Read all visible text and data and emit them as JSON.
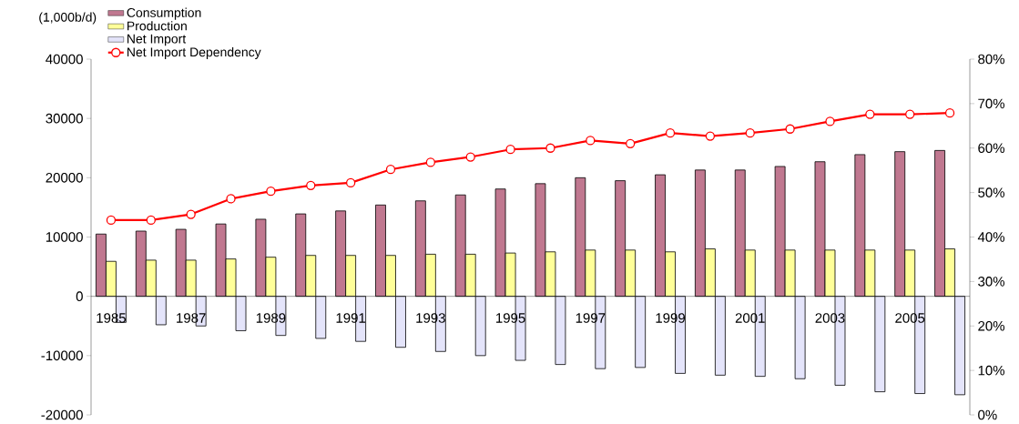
{
  "chart_data": {
    "type": "bar",
    "ylabel": "(1,000b/d)",
    "categories": [
      "1985",
      null,
      "1987",
      null,
      "1989",
      null,
      "1991",
      null,
      "1993",
      null,
      "1995",
      null,
      "1997",
      null,
      "1999",
      null,
      "2001",
      null,
      "2003",
      null,
      "2005",
      null
    ],
    "series": [
      {
        "name": "Consumption",
        "color": "#c07890",
        "values": [
          10500,
          11000,
          11300,
          12200,
          13000,
          13900,
          14400,
          15400,
          16100,
          17100,
          18100,
          19000,
          20000,
          19500,
          20500,
          21300,
          21300,
          21900,
          22700,
          23900,
          24400,
          24600
        ]
      },
      {
        "name": "Production",
        "color": "#ffff99",
        "values": [
          5900,
          6100,
          6100,
          6300,
          6600,
          6900,
          6900,
          6900,
          7100,
          7100,
          7300,
          7500,
          7800,
          7800,
          7500,
          8000,
          7800,
          7800,
          7800,
          7800,
          7800,
          8000
        ]
      },
      {
        "name": "Net Import",
        "color": "#e4e4fa",
        "values": [
          -4400,
          -4800,
          -5000,
          -5800,
          -6600,
          -7100,
          -7600,
          -8600,
          -9300,
          -10000,
          -10800,
          -11500,
          -12200,
          -12000,
          -13000,
          -13300,
          -13500,
          -13900,
          -15000,
          -16100,
          -16400,
          -16600
        ]
      },
      {
        "name": "Net Import Dependency",
        "color": "#ff0000",
        "type": "line",
        "axis": "y2",
        "marker": "circle",
        "line_style": "solid",
        "values": [
          43.8,
          43.8,
          45.1,
          48.6,
          50.3,
          51.6,
          52.2,
          55.2,
          56.8,
          58.0,
          59.7,
          60.0,
          61.7,
          61.0,
          63.4,
          62.7,
          63.4,
          64.3,
          66.0,
          67.6,
          67.6,
          67.9
        ]
      }
    ],
    "ylim": [
      -20000,
      40000
    ],
    "yticks": [
      -20000,
      -10000,
      0,
      10000,
      20000,
      30000,
      40000
    ],
    "y2lim": [
      0,
      80
    ],
    "y2ticks": [
      {
        "value": 0,
        "label": "0%"
      },
      {
        "value": 10,
        "label": "10%"
      },
      {
        "value": 20,
        "label": "20%"
      },
      {
        "value": 30,
        "label": "30%"
      },
      {
        "value": 40,
        "label": "40%"
      },
      {
        "value": 50,
        "label": "50%"
      },
      {
        "value": 60,
        "label": "60%"
      },
      {
        "value": 70,
        "label": "70%"
      },
      {
        "value": 80,
        "label": "80%"
      }
    ],
    "legend": "top left"
  }
}
